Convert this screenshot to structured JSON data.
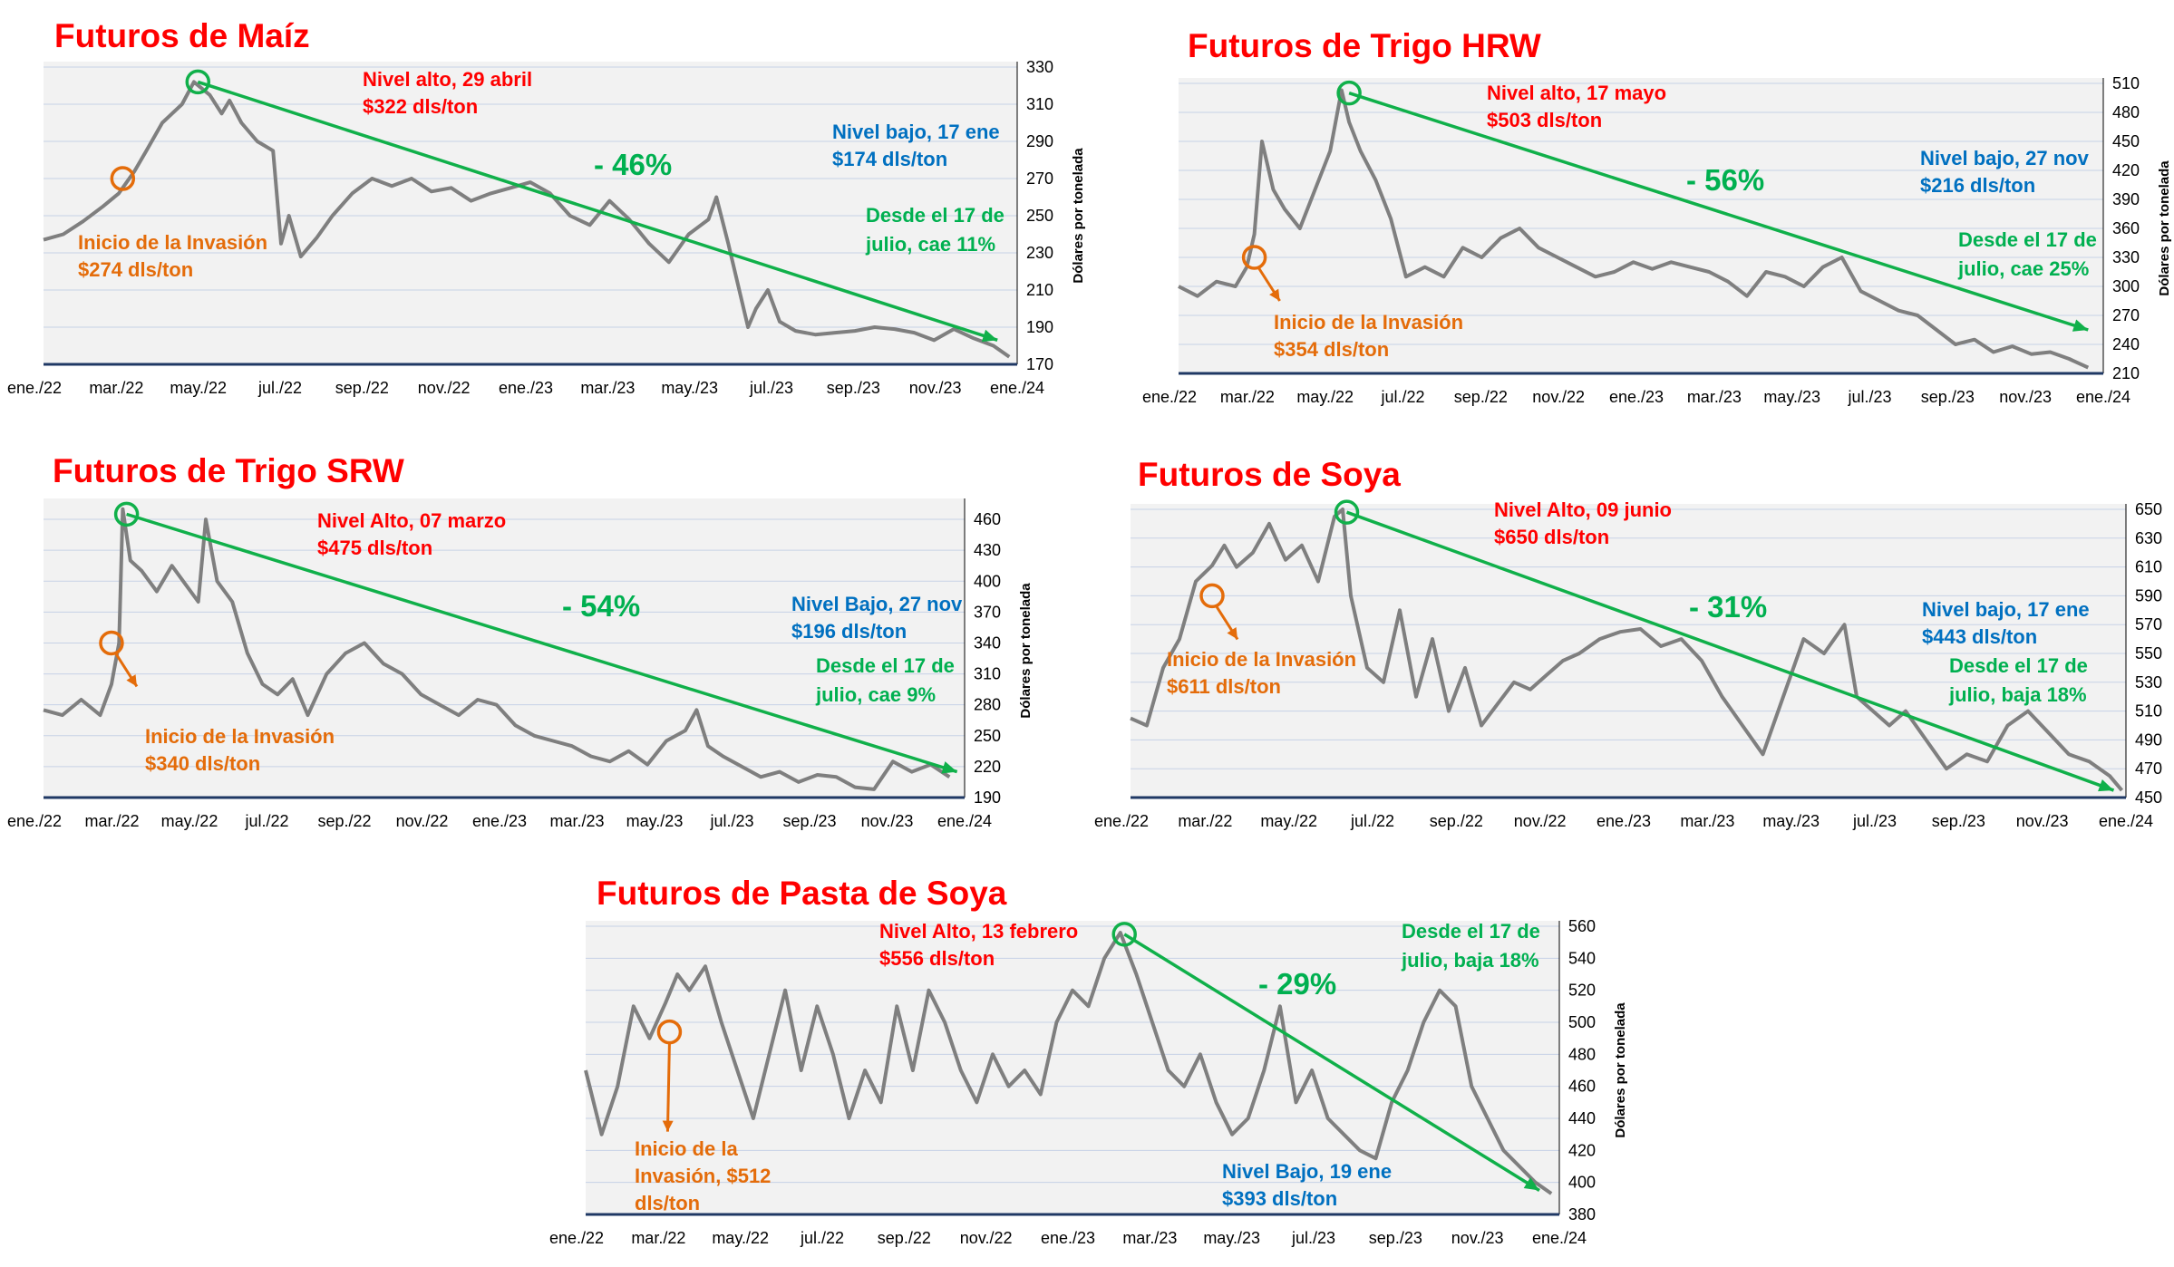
{
  "colors": {
    "title": "#ff0000",
    "price_line": "#7f7f7f",
    "trend": "#10b04a",
    "annotation_red": "#ff0000",
    "annotation_orange": "#e46c0a",
    "annotation_blue": "#0070c0",
    "annotation_green": "#00b050",
    "plot_bg": "#f2f2f2",
    "grid": "#c7d1e6",
    "baseline": "#1f3864"
  },
  "y_axis_label": "Dólares por tonelada",
  "chart_data": [
    {
      "id": "maiz",
      "type": "line",
      "title": "Futuros de Maíz",
      "ylabel": "Dólares por tonelada",
      "ylim": [
        170,
        330
      ],
      "yticks": [
        170,
        190,
        210,
        230,
        250,
        270,
        290,
        310,
        330
      ],
      "xticks": [
        "ene./22",
        "mar./22",
        "may./22",
        "jul./22",
        "sep./22",
        "nov./22",
        "ene./23",
        "mar./23",
        "may./23",
        "jul./23",
        "sep./23",
        "nov./23",
        "ene./24"
      ],
      "x_range": [
        0,
        24.6
      ],
      "series": [
        {
          "x": [
            0,
            0.5,
            1,
            1.5,
            1.9,
            2.3,
            2.6,
            3.0,
            3.5,
            3.8,
            4.2,
            4.5,
            4.7,
            5.0,
            5.4,
            5.8,
            6.0,
            6.2,
            6.5,
            6.9,
            7.3,
            7.8,
            8.3,
            8.8,
            9.3,
            9.8,
            10.3,
            10.8,
            11.3,
            11.8,
            12.3,
            12.8,
            13.3,
            13.8,
            14.3,
            14.8,
            15.3,
            15.8,
            16.3,
            16.8,
            17.0,
            17.3,
            17.8,
            18.0,
            18.3,
            18.6,
            19.0,
            19.5,
            20.0,
            20.5,
            21.0,
            21.5,
            22.0,
            22.5,
            23.0,
            23.5,
            24.0,
            24.4
          ],
          "y": [
            237,
            240,
            247,
            255,
            262,
            274,
            285,
            300,
            310,
            322,
            315,
            305,
            312,
            300,
            290,
            285,
            235,
            250,
            228,
            238,
            250,
            262,
            270,
            266,
            270,
            263,
            265,
            258,
            262,
            265,
            268,
            262,
            250,
            245,
            258,
            248,
            235,
            225,
            240,
            248,
            260,
            235,
            190,
            200,
            210,
            193,
            188,
            186,
            187,
            188,
            190,
            189,
            187,
            183,
            189,
            184,
            180,
            174
          ]
        }
      ],
      "annotations": {
        "high_text": [
          "Nivel alto, 29 abril",
          "$322 dls/ton"
        ],
        "low_text": [
          "Nivel bajo, 17 ene",
          "$174 dls/ton"
        ],
        "invasion_text": [
          "Inicio de la Invasión",
          "$274 dls/ton"
        ],
        "since_july_text": [
          "Desde el 17 de",
          "julio, cae 11%"
        ],
        "change_pct": "- 46%",
        "high_point": [
          3.9,
          322
        ],
        "invasion_point": [
          2.0,
          270
        ],
        "trend_end": [
          24.1,
          183
        ]
      }
    },
    {
      "id": "trigo_hrw",
      "type": "line",
      "title": "Futuros de Trigo HRW",
      "ylabel": "Dólares por tonelada",
      "ylim": [
        210,
        510
      ],
      "yticks": [
        210,
        240,
        270,
        300,
        330,
        360,
        390,
        420,
        450,
        480,
        510
      ],
      "xticks": [
        "ene./22",
        "mar./22",
        "may./22",
        "jul./22",
        "sep./22",
        "nov./22",
        "ene./23",
        "mar./23",
        "may./23",
        "jul./23",
        "sep./23",
        "nov./23",
        "ene./24"
      ],
      "x_range": [
        0,
        24.4
      ],
      "series": [
        {
          "x": [
            0,
            0.5,
            1,
            1.5,
            1.8,
            2.0,
            2.2,
            2.5,
            2.8,
            3.2,
            3.6,
            4.0,
            4.3,
            4.5,
            4.8,
            5.2,
            5.6,
            6.0,
            6.5,
            7.0,
            7.5,
            8.0,
            8.5,
            9.0,
            9.5,
            10.0,
            10.5,
            11.0,
            11.5,
            12.0,
            12.5,
            13.0,
            13.5,
            14.0,
            14.5,
            15.0,
            15.5,
            16.0,
            16.5,
            17.0,
            17.5,
            18.0,
            18.5,
            19.0,
            19.5,
            20.0,
            20.5,
            21.0,
            21.5,
            22.0,
            22.5,
            23.0,
            23.5,
            24.0
          ],
          "y": [
            300,
            290,
            305,
            300,
            320,
            354,
            450,
            400,
            380,
            360,
            400,
            440,
            503,
            470,
            440,
            410,
            370,
            310,
            320,
            310,
            340,
            330,
            350,
            360,
            340,
            330,
            320,
            310,
            315,
            325,
            318,
            325,
            320,
            315,
            305,
            290,
            315,
            310,
            300,
            320,
            330,
            295,
            285,
            275,
            270,
            255,
            240,
            245,
            232,
            238,
            230,
            232,
            225,
            216
          ]
        }
      ],
      "annotations": {
        "high_text": [
          "Nivel alto, 17 mayo",
          "$503 dls/ton"
        ],
        "low_text": [
          "Nivel bajo, 27 nov",
          "$216 dls/ton"
        ],
        "invasion_text": [
          "Inicio de la Invasión",
          "$354 dls/ton"
        ],
        "since_july_text": [
          "Desde el 17 de",
          "julio, cae 25%"
        ],
        "change_pct": "- 56%",
        "high_point": [
          4.5,
          500
        ],
        "invasion_point": [
          2.0,
          330
        ],
        "trend_end": [
          24.0,
          255
        ]
      }
    },
    {
      "id": "trigo_srw",
      "type": "line",
      "title": "Futuros de Trigo SRW",
      "ylabel": "Dólares por tonelada",
      "ylim": [
        190,
        475
      ],
      "yticks": [
        190,
        220,
        250,
        280,
        310,
        340,
        370,
        400,
        430,
        460
      ],
      "xticks": [
        "ene./22",
        "mar./22",
        "may./22",
        "jul./22",
        "sep./22",
        "nov./22",
        "ene./23",
        "mar./23",
        "may./23",
        "jul./23",
        "sep./23",
        "nov./23",
        "ene./24"
      ],
      "x_range": [
        0,
        24.4
      ],
      "series": [
        {
          "x": [
            0,
            0.5,
            1,
            1.5,
            1.8,
            2.0,
            2.1,
            2.3,
            2.6,
            3.0,
            3.4,
            3.8,
            4.1,
            4.3,
            4.6,
            5.0,
            5.4,
            5.8,
            6.2,
            6.6,
            7.0,
            7.5,
            8.0,
            8.5,
            9.0,
            9.5,
            10.0,
            10.5,
            11.0,
            11.5,
            12.0,
            12.5,
            13.0,
            13.5,
            14.0,
            14.5,
            15.0,
            15.5,
            16.0,
            16.5,
            17.0,
            17.3,
            17.6,
            18.0,
            18.5,
            19.0,
            19.5,
            20.0,
            20.5,
            21.0,
            21.5,
            22.0,
            22.5,
            23.0,
            23.5,
            24.0
          ],
          "y": [
            275,
            270,
            285,
            270,
            300,
            340,
            470,
            420,
            410,
            390,
            415,
            395,
            380,
            460,
            400,
            380,
            330,
            300,
            290,
            305,
            270,
            310,
            330,
            340,
            320,
            310,
            290,
            280,
            270,
            285,
            280,
            260,
            250,
            245,
            240,
            230,
            225,
            235,
            222,
            245,
            255,
            275,
            240,
            230,
            220,
            210,
            215,
            205,
            212,
            210,
            200,
            198,
            225,
            215,
            222,
            210
          ]
        }
      ],
      "annotations": {
        "high_text": [
          "Nivel Alto, 07 marzo",
          "$475 dls/ton"
        ],
        "low_text": [
          "Nivel Bajo, 27 nov",
          "$196 dls/ton"
        ],
        "invasion_text": [
          "Inicio de la Invasión",
          "$340 dls/ton"
        ],
        "since_july_text": [
          "Desde el 17 de",
          "julio, cae 9%"
        ],
        "change_pct": "- 54%",
        "high_point": [
          2.2,
          465
        ],
        "invasion_point": [
          1.8,
          340
        ],
        "trend_end": [
          24.2,
          215
        ]
      }
    },
    {
      "id": "soya",
      "type": "line",
      "title": "Futuros de Soya",
      "ylabel": "Dólares por tonelada",
      "ylim": [
        450,
        650
      ],
      "yticks": [
        450,
        470,
        490,
        510,
        530,
        550,
        570,
        590,
        610,
        630,
        650
      ],
      "xticks": [
        "ene./22",
        "mar./22",
        "may./22",
        "jul./22",
        "sep./22",
        "nov./22",
        "ene./23",
        "mar./23",
        "may./23",
        "jul./23",
        "sep./23",
        "nov./23",
        "ene./24"
      ],
      "x_range": [
        0,
        24.4
      ],
      "series": [
        {
          "x": [
            0,
            0.4,
            0.8,
            1.2,
            1.6,
            2.0,
            2.3,
            2.6,
            3.0,
            3.4,
            3.8,
            4.2,
            4.6,
            5.0,
            5.2,
            5.4,
            5.8,
            6.2,
            6.6,
            7.0,
            7.4,
            7.8,
            8.2,
            8.6,
            9.0,
            9.4,
            9.8,
            10.2,
            10.6,
            11.0,
            11.5,
            12.0,
            12.5,
            13.0,
            13.5,
            14.0,
            14.5,
            15.0,
            15.5,
            16.0,
            16.5,
            17.0,
            17.5,
            17.8,
            18.2,
            18.6,
            19.0,
            19.5,
            20.0,
            20.5,
            21.0,
            21.5,
            22.0,
            22.5,
            23.0,
            23.5,
            24.0,
            24.3
          ],
          "y": [
            505,
            500,
            540,
            560,
            600,
            611,
            625,
            610,
            620,
            640,
            615,
            625,
            600,
            645,
            650,
            590,
            540,
            530,
            580,
            520,
            560,
            510,
            540,
            500,
            515,
            530,
            525,
            535,
            545,
            550,
            560,
            565,
            567,
            555,
            560,
            545,
            520,
            500,
            480,
            520,
            560,
            550,
            570,
            520,
            510,
            500,
            510,
            490,
            470,
            480,
            475,
            500,
            510,
            495,
            480,
            475,
            465,
            455
          ]
        }
      ],
      "annotations": {
        "high_text": [
          "Nivel Alto, 09 junio",
          "$650 dls/ton"
        ],
        "low_text": [
          "Nivel bajo, 17 ene",
          "$443 dls/ton"
        ],
        "invasion_text": [
          "Inicio de la Invasión",
          "$611 dls/ton"
        ],
        "since_july_text": [
          "Desde el 17 de",
          "julio, baja 18%"
        ],
        "change_pct": "- 31%",
        "high_point": [
          5.3,
          648
        ],
        "invasion_point": [
          2.0,
          590
        ],
        "trend_end": [
          24.1,
          455
        ]
      }
    },
    {
      "id": "pasta_soya",
      "type": "line",
      "title": "Futuros de Pasta de Soya",
      "ylabel": "Dólares por tonelada",
      "ylim": [
        380,
        560
      ],
      "yticks": [
        380,
        400,
        420,
        440,
        460,
        480,
        500,
        520,
        540,
        560
      ],
      "xticks": [
        "ene./22",
        "mar./22",
        "may./22",
        "jul./22",
        "sep./22",
        "nov./22",
        "ene./23",
        "mar./23",
        "may./23",
        "jul./23",
        "sep./23",
        "nov./23",
        "ene./24"
      ],
      "x_range": [
        0,
        24.4
      ],
      "series": [
        {
          "x": [
            0,
            0.4,
            0.8,
            1.2,
            1.6,
            2.0,
            2.3,
            2.6,
            3.0,
            3.4,
            3.8,
            4.2,
            4.6,
            5.0,
            5.4,
            5.8,
            6.2,
            6.6,
            7.0,
            7.4,
            7.8,
            8.2,
            8.6,
            9.0,
            9.4,
            9.8,
            10.2,
            10.6,
            11.0,
            11.4,
            11.8,
            12.2,
            12.6,
            13.0,
            13.4,
            13.8,
            14.2,
            14.6,
            15.0,
            15.4,
            15.8,
            16.2,
            16.6,
            17.0,
            17.4,
            17.8,
            18.2,
            18.6,
            19.0,
            19.4,
            19.8,
            20.2,
            20.6,
            21.0,
            21.4,
            21.8,
            22.2,
            22.6,
            23.0,
            23.4,
            23.8,
            24.2
          ],
          "y": [
            470,
            430,
            460,
            510,
            490,
            512,
            530,
            520,
            535,
            500,
            470,
            440,
            480,
            520,
            470,
            510,
            480,
            440,
            470,
            450,
            510,
            470,
            520,
            500,
            470,
            450,
            480,
            460,
            470,
            455,
            500,
            520,
            510,
            540,
            556,
            530,
            500,
            470,
            460,
            480,
            450,
            430,
            440,
            470,
            510,
            450,
            470,
            440,
            430,
            420,
            415,
            450,
            470,
            500,
            520,
            510,
            460,
            440,
            420,
            410,
            400,
            393
          ]
        }
      ],
      "annotations": {
        "high_text": [
          "Nivel Alto, 13 febrero",
          "$556 dls/ton"
        ],
        "low_text": [
          "Nivel Bajo, 19 ene",
          "$393 dls/ton"
        ],
        "invasion_text": [
          "Inicio de la",
          "Invasión, $512",
          "dls/ton"
        ],
        "since_july_text": [
          "Desde el 17 de",
          "julio, baja 18%"
        ],
        "change_pct": "- 29%",
        "high_point": [
          13.5,
          555
        ],
        "invasion_point": [
          2.1,
          494
        ],
        "trend_end": [
          23.9,
          395
        ]
      }
    }
  ]
}
